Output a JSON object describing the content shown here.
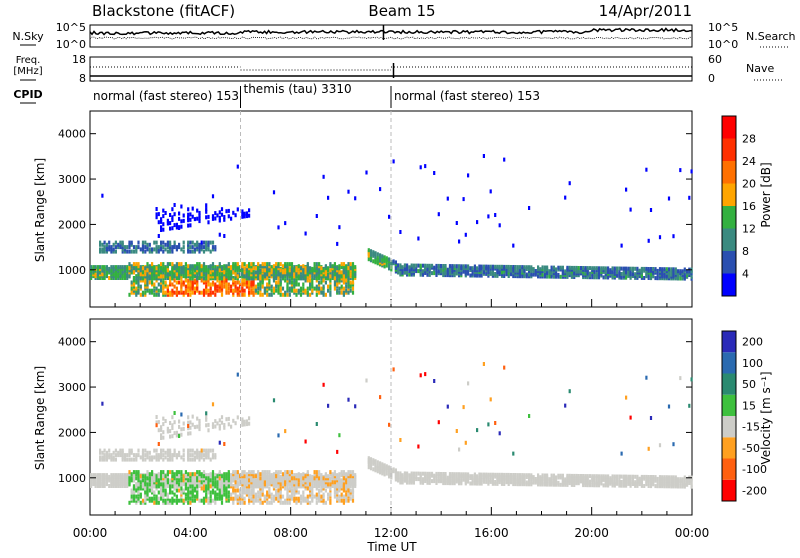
{
  "header": {
    "station": "Blackstone (fitACF)",
    "beam": "Beam 15",
    "date": "14/Apr/2011"
  },
  "noise_panel": {
    "left_label": "N.Sky",
    "right_label": "N.Search",
    "left_ticks": [
      "10^5",
      "10^0"
    ],
    "right_ticks": [
      "10^5",
      "10^0"
    ]
  },
  "freq_panel": {
    "left_label_1": "Freq.",
    "left_label_2": "[MHz]",
    "left_ticks": [
      "18",
      "8"
    ],
    "right_label": "Nave",
    "right_ticks": [
      "60",
      "0"
    ]
  },
  "cpid": {
    "label": "CPID",
    "segments": [
      {
        "name": "normal (fast stereo) 153",
        "start_hour": 0,
        "end_hour": 6.0
      },
      {
        "name": "themis (tau) 3310",
        "start_hour": 6.0,
        "end_hour": 12.0
      },
      {
        "name": "normal (fast stereo) 153",
        "start_hour": 12.0,
        "end_hour": 24
      }
    ]
  },
  "x_axis": {
    "label": "Time UT",
    "ticks": [
      "00:00",
      "04:00",
      "08:00",
      "12:00",
      "16:00",
      "20:00",
      "00:00"
    ]
  },
  "colors": {
    "power": [
      "#0000ff",
      "#2a4fb0",
      "#3a8a80",
      "#33b040",
      "#ffa500",
      "#ff7000",
      "#ff3000",
      "#ff0000"
    ],
    "velocity": [
      "#2a2ab8",
      "#2a6ab0",
      "#2a8a70",
      "#3ec03e",
      "#cdcdc8",
      "#ffa020",
      "#ff6010",
      "#ff0000"
    ]
  },
  "chart_data": [
    {
      "type": "heatmap",
      "title": "",
      "xlabel": "",
      "ylabel": "Slant Range [km]",
      "xlim": [
        0,
        24
      ],
      "ylim": [
        180,
        4500
      ],
      "yticks": [
        "1000",
        "2000",
        "3000",
        "4000"
      ],
      "colorbar_label": "Power [dB]",
      "colorbar_ticks": [
        "4",
        "8",
        "12",
        "16",
        "20",
        "24",
        "28"
      ]
    },
    {
      "type": "heatmap",
      "title": "",
      "xlabel": "Time UT",
      "ylabel": "Slant Range [km]",
      "xlim": [
        0,
        24
      ],
      "ylim": [
        180,
        4500
      ],
      "yticks": [
        "1000",
        "2000",
        "3000",
        "4000"
      ],
      "colorbar_label": "Velocity [m s⁻¹]",
      "colorbar_ticks": [
        "200",
        "100",
        "50",
        "15",
        "-15",
        "-50",
        "-100",
        "-200"
      ]
    }
  ]
}
